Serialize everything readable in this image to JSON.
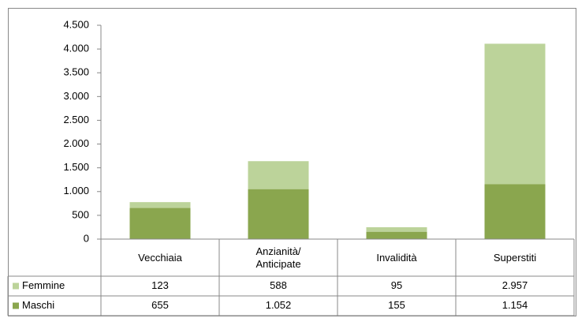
{
  "chart_data": {
    "type": "stacked_bar",
    "categories": [
      "Vecchiaia",
      "Anzianità/ Anticipate",
      "Invalidità",
      "Superstiti"
    ],
    "series": [
      {
        "name": "Femmine",
        "color": "#bcd39a",
        "values": [
          123,
          588,
          95,
          2957
        ],
        "value_labels": [
          "123",
          "588",
          "95",
          "2.957"
        ]
      },
      {
        "name": "Maschi",
        "color": "#8aa64e",
        "values": [
          655,
          1052,
          155,
          1154
        ],
        "value_labels": [
          "655",
          "1.052",
          "155",
          "1.154"
        ]
      }
    ],
    "ylim": [
      0,
      4500
    ],
    "yticks": [
      0,
      500,
      {
        "value": 1000,
        "label": "1.000"
      },
      {
        "value": 1500,
        "label": "1.500"
      },
      {
        "value": 2000,
        "label": "2.000"
      },
      {
        "value": 2500,
        "label": "2.500"
      },
      {
        "value": 3000,
        "label": "3.000"
      },
      {
        "value": 3500,
        "label": "3.500"
      },
      {
        "value": 4000,
        "label": "4.000"
      },
      {
        "value": 4500,
        "label": "4.500"
      }
    ],
    "grid": false,
    "data_table": true
  }
}
